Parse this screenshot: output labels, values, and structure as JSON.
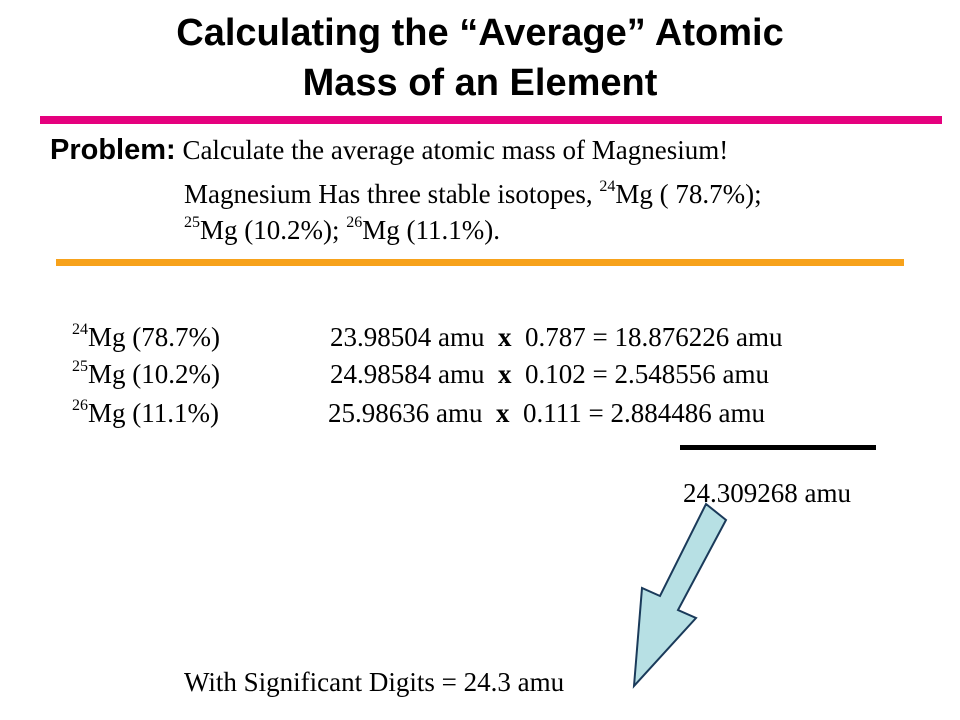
{
  "slide": {
    "title_line1": "Calculating the “Average” Atomic",
    "title_line2": "Mass of an Element",
    "problem_label": "Problem:",
    "problem_text1": "Calculate the average atomic mass of Magnesium!",
    "problem_text2": "Magnesium  Has three stable isotopes,",
    "iso1_mass": "24",
    "iso1_pre": "Mg ( 78.7%);",
    "iso2_mass": "25",
    "iso2_pre": "Mg (10.2%);",
    "iso3_mass": "26",
    "iso3_pre": "Mg (11.1%).",
    "rows": [
      {
        "mass_number": "24",
        "isotope": "Mg  (78.7%)",
        "mass": "23.98504 amu",
        "op": "x",
        "fraction_result": "0.787 = 18.876226  amu"
      },
      {
        "mass_number": "25",
        "isotope": "Mg  (10.2%)",
        "mass": "24.98584 amu",
        "op": "x",
        "fraction_result": "0.102 =   2.548556  amu"
      },
      {
        "mass_number": "26",
        "isotope": "Mg  (11.1%)",
        "mass": "25.98636 amu",
        "op": "x",
        "fraction_result": "0.111 =   2.884486  amu"
      }
    ],
    "total": "24.309268  amu",
    "significant": "With Significant Digits  =  24.3 amu"
  },
  "colors": {
    "top_bar": "#e5007e",
    "mid_bar": "#f7a21b",
    "arrow_fill": "#b7e0e4",
    "arrow_stroke": "#1a3a5a"
  }
}
